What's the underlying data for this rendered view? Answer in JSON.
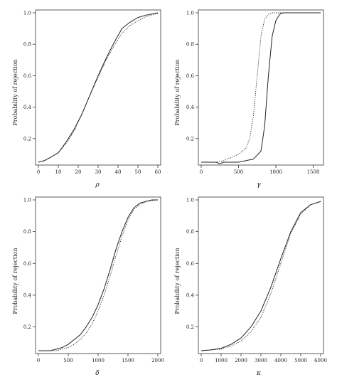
{
  "chart_data": [
    {
      "type": "line",
      "xlabel": "ρ",
      "ylabel": "Probability of rejection",
      "xlim": [
        0,
        60
      ],
      "ylim": [
        0.05,
        1.0
      ],
      "xticks": [
        0,
        10,
        20,
        30,
        40,
        50,
        60
      ],
      "yticks": [
        0.2,
        0.4,
        0.6,
        0.8,
        1.0
      ],
      "grid": false,
      "legend": "none",
      "series": [
        {
          "style": "solid",
          "x": [
            0,
            3,
            6,
            10,
            14,
            18,
            22,
            26,
            30,
            34,
            38,
            42,
            46,
            50,
            54,
            58,
            60
          ],
          "y": [
            0.05,
            0.06,
            0.08,
            0.11,
            0.18,
            0.26,
            0.36,
            0.48,
            0.6,
            0.71,
            0.81,
            0.9,
            0.94,
            0.97,
            0.985,
            0.995,
            1.0
          ]
        },
        {
          "style": "dotted",
          "x": [
            0,
            3,
            6,
            10,
            14,
            18,
            22,
            26,
            30,
            34,
            38,
            42,
            46,
            50,
            54,
            58,
            60
          ],
          "y": [
            0.05,
            0.06,
            0.08,
            0.11,
            0.17,
            0.25,
            0.36,
            0.48,
            0.59,
            0.7,
            0.79,
            0.87,
            0.92,
            0.95,
            0.975,
            0.99,
            0.995
          ]
        }
      ]
    },
    {
      "type": "line",
      "xlabel": "γ",
      "ylabel": "Probability of rejection",
      "xlim": [
        0,
        1600
      ],
      "ylim": [
        0.05,
        1.0
      ],
      "xticks": [
        0,
        500,
        1000,
        1500
      ],
      "yticks": [
        0.2,
        0.4,
        0.6,
        0.8,
        1.0
      ],
      "grid": false,
      "legend": "none",
      "series": [
        {
          "style": "solid",
          "x": [
            0,
            100,
            200,
            250,
            300,
            400,
            500,
            600,
            700,
            800,
            850,
            900,
            950,
            1000,
            1050,
            1100,
            1200,
            1400,
            1600
          ],
          "y": [
            0.05,
            0.05,
            0.05,
            0.04,
            0.05,
            0.05,
            0.05,
            0.06,
            0.07,
            0.12,
            0.28,
            0.6,
            0.85,
            0.95,
            0.99,
            1.0,
            1.0,
            1.0,
            1.0
          ]
        },
        {
          "style": "dotted",
          "x": [
            0,
            100,
            200,
            300,
            400,
            500,
            600,
            650,
            700,
            750,
            800,
            850,
            900,
            950,
            1000,
            1100,
            1600
          ],
          "y": [
            0.05,
            0.05,
            0.05,
            0.06,
            0.08,
            0.1,
            0.14,
            0.2,
            0.35,
            0.6,
            0.85,
            0.96,
            0.99,
            1.0,
            1.0,
            1.0,
            1.0
          ]
        }
      ]
    },
    {
      "type": "line",
      "xlabel": "δ",
      "ylabel": "Probability of rejection",
      "xlim": [
        0,
        2000
      ],
      "ylim": [
        0.05,
        1.0
      ],
      "xticks": [
        0,
        500,
        1000,
        1500,
        2000
      ],
      "yticks": [
        0.2,
        0.4,
        0.6,
        0.8,
        1.0
      ],
      "grid": false,
      "legend": "none",
      "series": [
        {
          "style": "solid",
          "x": [
            0,
            100,
            200,
            300,
            400,
            500,
            600,
            700,
            800,
            900,
            1000,
            1100,
            1200,
            1300,
            1400,
            1500,
            1600,
            1700,
            1800,
            1900,
            2000
          ],
          "y": [
            0.05,
            0.05,
            0.05,
            0.06,
            0.07,
            0.09,
            0.12,
            0.15,
            0.2,
            0.26,
            0.34,
            0.44,
            0.56,
            0.69,
            0.8,
            0.89,
            0.95,
            0.98,
            0.99,
            1.0,
            1.0
          ]
        },
        {
          "style": "dotted",
          "x": [
            0,
            100,
            200,
            300,
            400,
            500,
            600,
            700,
            800,
            900,
            1000,
            1100,
            1200,
            1300,
            1400,
            1500,
            1600,
            1700,
            1800,
            1900,
            2000
          ],
          "y": [
            0.05,
            0.05,
            0.05,
            0.05,
            0.06,
            0.07,
            0.09,
            0.12,
            0.16,
            0.22,
            0.3,
            0.4,
            0.52,
            0.65,
            0.77,
            0.87,
            0.94,
            0.97,
            0.99,
            0.995,
            1.0
          ]
        }
      ]
    },
    {
      "type": "line",
      "xlabel": "κ",
      "ylabel": "Probability of rejection",
      "xlim": [
        0,
        6000
      ],
      "ylim": [
        0.05,
        1.0
      ],
      "xticks": [
        0,
        1000,
        2000,
        3000,
        4000,
        5000,
        6000
      ],
      "yticks": [
        0.2,
        0.4,
        0.6,
        0.8,
        1.0
      ],
      "grid": false,
      "legend": "none",
      "series": [
        {
          "style": "solid",
          "x": [
            0,
            500,
            1000,
            1500,
            2000,
            2500,
            3000,
            3500,
            4000,
            4500,
            5000,
            5500,
            6000
          ],
          "y": [
            0.05,
            0.055,
            0.065,
            0.09,
            0.13,
            0.2,
            0.3,
            0.45,
            0.63,
            0.8,
            0.92,
            0.97,
            0.99
          ]
        },
        {
          "style": "dotted",
          "x": [
            0,
            500,
            1000,
            1500,
            2000,
            2500,
            3000,
            3500,
            4000,
            4500,
            5000,
            5500,
            6000
          ],
          "y": [
            0.05,
            0.055,
            0.06,
            0.08,
            0.11,
            0.17,
            0.26,
            0.41,
            0.6,
            0.79,
            0.91,
            0.97,
            0.99
          ]
        }
      ]
    }
  ]
}
